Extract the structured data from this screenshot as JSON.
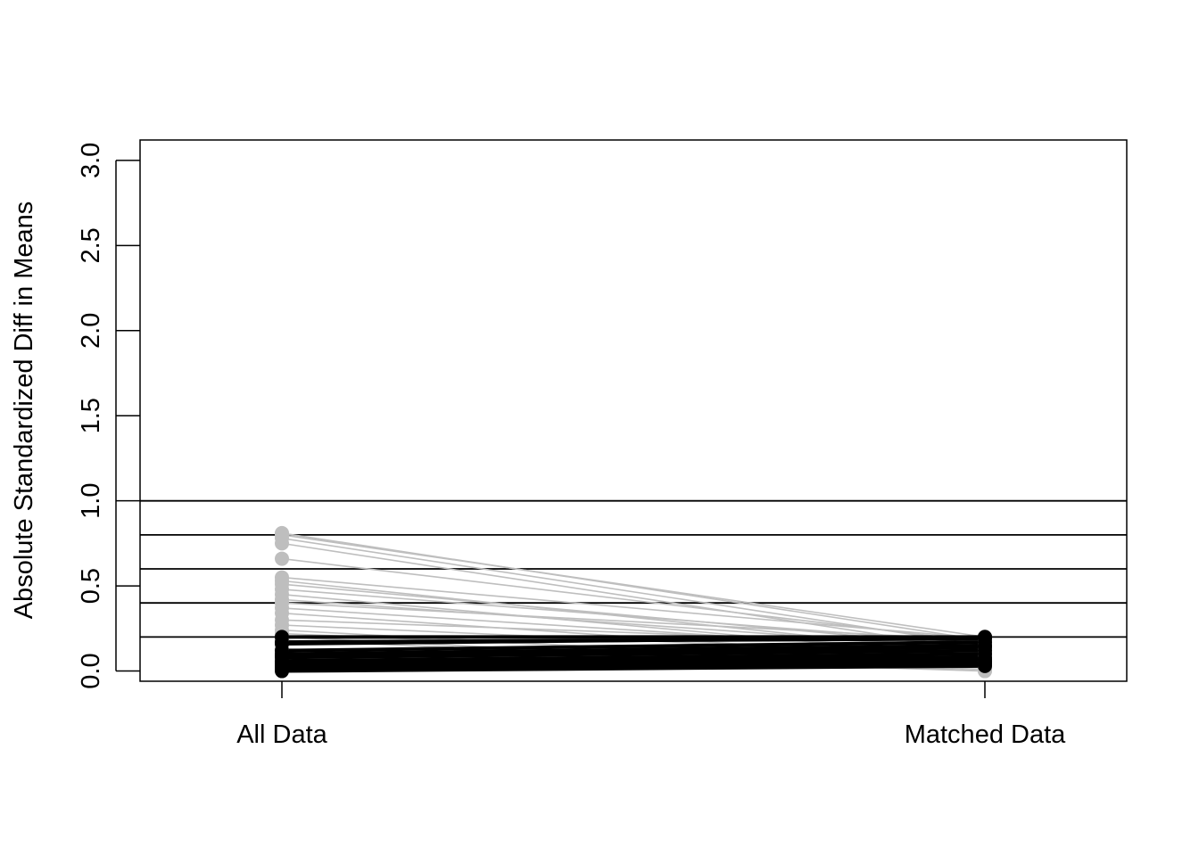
{
  "chart_data": {
    "type": "line",
    "title": "",
    "xlabel": "",
    "ylabel": "Absolute Standardized Diff in Means",
    "categories": [
      "All Data",
      "Matched Data"
    ],
    "ylim": [
      -0.06,
      3.12
    ],
    "yticks": [
      "0.0",
      "0.5",
      "1.0",
      "1.5",
      "2.0",
      "2.5",
      "3.0"
    ],
    "reference_lines": [
      0.2,
      0.4,
      0.6,
      0.8,
      1.0
    ],
    "grid": false,
    "legend": "none",
    "colors": {
      "improved": "#bebebe",
      "worsened": "#000000",
      "axis": "#000000"
    },
    "series": [
      {
        "values": [
          0.81,
          0.18
        ],
        "group": "improved"
      },
      {
        "values": [
          0.8,
          0.2
        ],
        "group": "improved"
      },
      {
        "values": [
          0.78,
          0.15
        ],
        "group": "improved"
      },
      {
        "values": [
          0.75,
          0.12
        ],
        "group": "improved"
      },
      {
        "values": [
          0.66,
          0.17
        ],
        "group": "improved"
      },
      {
        "values": [
          0.55,
          0.19
        ],
        "group": "improved"
      },
      {
        "values": [
          0.53,
          0.1
        ],
        "group": "improved"
      },
      {
        "values": [
          0.51,
          0.14
        ],
        "group": "improved"
      },
      {
        "values": [
          0.48,
          0.16
        ],
        "group": "improved"
      },
      {
        "values": [
          0.45,
          0.08
        ],
        "group": "improved"
      },
      {
        "values": [
          0.42,
          0.13
        ],
        "group": "improved"
      },
      {
        "values": [
          0.4,
          0.18
        ],
        "group": "improved"
      },
      {
        "values": [
          0.37,
          0.11
        ],
        "group": "improved"
      },
      {
        "values": [
          0.34,
          0.06
        ],
        "group": "improved"
      },
      {
        "values": [
          0.3,
          0.15
        ],
        "group": "improved"
      },
      {
        "values": [
          0.27,
          0.09
        ],
        "group": "improved"
      },
      {
        "values": [
          0.24,
          0.02
        ],
        "group": "improved"
      },
      {
        "values": [
          0.22,
          0.05
        ],
        "group": "improved"
      },
      {
        "values": [
          0.2,
          0.0
        ],
        "group": "improved"
      },
      {
        "values": [
          0.18,
          0.01
        ],
        "group": "improved"
      },
      {
        "values": [
          0.13,
          0.0
        ],
        "group": "improved"
      },
      {
        "values": [
          0.2,
          0.2
        ],
        "group": "worsened"
      },
      {
        "values": [
          0.17,
          0.19
        ],
        "group": "worsened"
      },
      {
        "values": [
          0.16,
          0.2
        ],
        "group": "worsened"
      },
      {
        "values": [
          0.12,
          0.17
        ],
        "group": "worsened"
      },
      {
        "values": [
          0.1,
          0.15
        ],
        "group": "worsened"
      },
      {
        "values": [
          0.09,
          0.14
        ],
        "group": "worsened"
      },
      {
        "values": [
          0.08,
          0.12
        ],
        "group": "worsened"
      },
      {
        "values": [
          0.06,
          0.1
        ],
        "group": "worsened"
      },
      {
        "values": [
          0.05,
          0.08
        ],
        "group": "worsened"
      },
      {
        "values": [
          0.04,
          0.07
        ],
        "group": "worsened"
      },
      {
        "values": [
          0.03,
          0.06
        ],
        "group": "worsened"
      },
      {
        "values": [
          0.02,
          0.05
        ],
        "group": "worsened"
      },
      {
        "values": [
          0.01,
          0.04
        ],
        "group": "worsened"
      },
      {
        "values": [
          0.0,
          0.03
        ],
        "group": "worsened"
      }
    ]
  }
}
